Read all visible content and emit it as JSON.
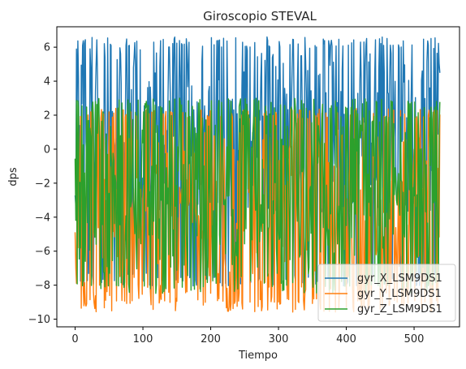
{
  "chart_data": {
    "type": "line",
    "title": "Giroscopio STEVAL",
    "xlabel": "Tiempo",
    "ylabel": "dps",
    "xlim": [
      -27,
      567
    ],
    "ylim": [
      -10.45,
      7.2
    ],
    "xticks": [
      0,
      100,
      200,
      300,
      400,
      500
    ],
    "yticks": [
      -10,
      -8,
      -6,
      -4,
      -2,
      0,
      2,
      4,
      6
    ],
    "x_range": [
      0,
      538
    ],
    "legend_position": "lower-right",
    "grid": false,
    "series": [
      {
        "name": "gyr_X_LSM9DS1",
        "color": "#1f77b4",
        "min": -8.1,
        "max": 6.6,
        "center": 1.0,
        "spread": 5.0
      },
      {
        "name": "gyr_Y_LSM9DS1",
        "color": "#ff7f0e",
        "min": -9.6,
        "max": 2.4,
        "center": -4.0,
        "spread": 5.0
      },
      {
        "name": "gyr_Z_LSM9DS1",
        "color": "#2ca02c",
        "min": -8.5,
        "max": 3.0,
        "center": -2.5,
        "spread": 5.0
      }
    ]
  }
}
